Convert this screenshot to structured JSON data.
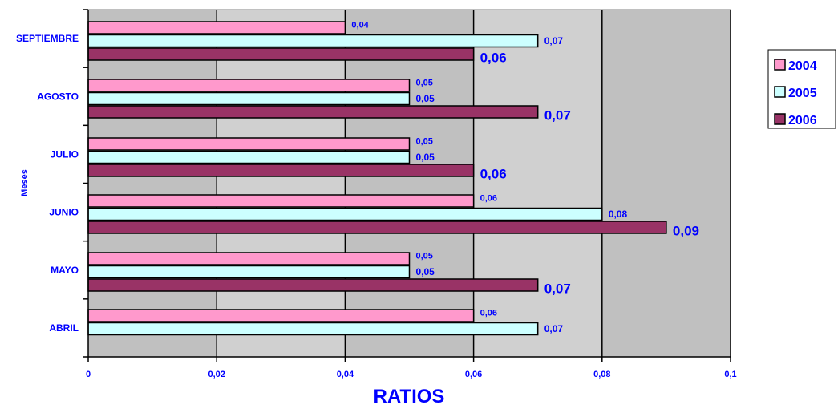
{
  "chart_data": {
    "type": "bar",
    "orientation": "horizontal",
    "categories": [
      "ABRIL",
      "MAYO",
      "JUNIO",
      "JULIO",
      "AGOSTO",
      "SEPTIEMBRE"
    ],
    "series": [
      {
        "name": "2004",
        "color": "#ff99cc",
        "values": [
          0.06,
          0.05,
          0.06,
          0.05,
          0.05,
          0.04
        ],
        "labels": [
          "0,06",
          "0,05",
          "0,06",
          "0,05",
          "0,05",
          "0,04"
        ]
      },
      {
        "name": "2005",
        "color": "#ccffff",
        "values": [
          0.07,
          0.05,
          0.08,
          0.05,
          0.05,
          0.07
        ],
        "labels": [
          "0,07",
          "0,05",
          "0,08",
          "0,05",
          "0,05",
          "0,07"
        ]
      },
      {
        "name": "2006",
        "color": "#993366",
        "values": [
          null,
          0.07,
          0.09,
          0.06,
          0.07,
          0.06
        ],
        "labels": [
          null,
          "0,07",
          "0,09",
          "0,06",
          "0,07",
          "0,06"
        ]
      }
    ],
    "xlabel": "RATIOS",
    "ylabel": "Meses",
    "xlim": [
      0,
      0.1
    ],
    "xticks": [
      0,
      0.02,
      0.04,
      0.06,
      0.08,
      0.1
    ],
    "xtick_labels": [
      "0",
      "0,02",
      "0,04",
      "0,06",
      "0,08",
      "0,1"
    ],
    "grid": true,
    "legend_position": "right",
    "colors": {
      "plot_background": "#c0c0c0",
      "text": "#0000ff",
      "bar_border": "#000000"
    }
  }
}
